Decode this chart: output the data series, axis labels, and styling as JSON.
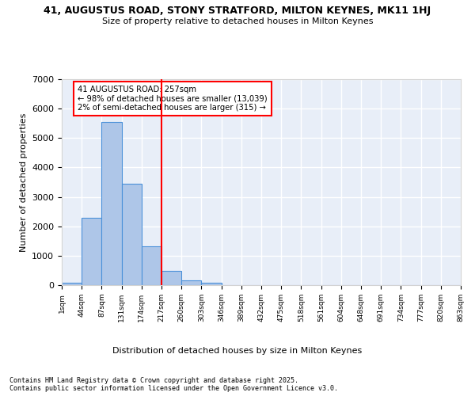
{
  "title_line1": "41, AUGUSTUS ROAD, STONY STRATFORD, MILTON KEYNES, MK11 1HJ",
  "title_line2": "Size of property relative to detached houses in Milton Keynes",
  "xlabel": "Distribution of detached houses by size in Milton Keynes",
  "ylabel": "Number of detached properties",
  "bin_labels": [
    "1sqm",
    "44sqm",
    "87sqm",
    "131sqm",
    "174sqm",
    "217sqm",
    "260sqm",
    "303sqm",
    "346sqm",
    "389sqm",
    "432sqm",
    "475sqm",
    "518sqm",
    "561sqm",
    "604sqm",
    "648sqm",
    "691sqm",
    "734sqm",
    "777sqm",
    "820sqm",
    "863sqm"
  ],
  "bar_values": [
    80,
    2300,
    5550,
    3450,
    1320,
    480,
    150,
    80,
    10,
    0,
    0,
    0,
    0,
    0,
    0,
    0,
    0,
    0,
    0,
    0
  ],
  "ylim": [
    0,
    7000
  ],
  "yticks": [
    0,
    1000,
    2000,
    3000,
    4000,
    5000,
    6000,
    7000
  ],
  "bar_color": "#aec6e8",
  "bar_edge_color": "#4a90d9",
  "vline_x": 5.0,
  "vline_color": "red",
  "annotation_text": "41 AUGUSTUS ROAD: 257sqm\n← 98% of detached houses are smaller (13,039)\n2% of semi-detached houses are larger (315) →",
  "annotation_box_color": "white",
  "annotation_box_edge_color": "red",
  "background_color": "#e8eef8",
  "footer_text": "Contains HM Land Registry data © Crown copyright and database right 2025.\nContains public sector information licensed under the Open Government Licence v3.0.",
  "grid_color": "white",
  "num_bins": 20
}
